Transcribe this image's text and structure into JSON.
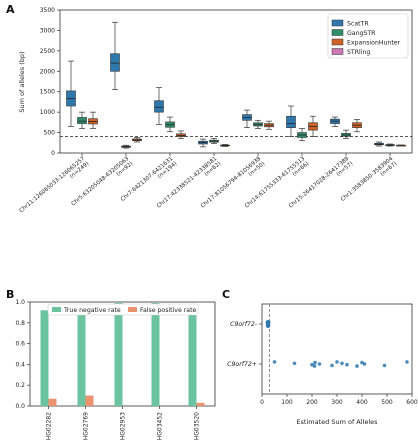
{
  "colors": {
    "ScatTR": "#2f78ad",
    "GangSTR": "#2f8f6b",
    "ExpansionHunter": "#cf6226",
    "STRling": "#cc79b3",
    "tnr": "#6cc3a0",
    "fpr": "#eb9270"
  },
  "panels": {
    "a": "A",
    "b": "B",
    "c": "C"
  },
  "chart_data": [
    {
      "type": "box",
      "panel": "A",
      "ylabel": "Sum of alleles (bp)",
      "ylim": [
        0,
        3500
      ],
      "yticks": [
        0,
        500,
        1000,
        1500,
        2000,
        2500,
        3000,
        3500
      ],
      "reference_line": 400,
      "legend_position": "top-right",
      "series_names": [
        "ScatTR",
        "GangSTR",
        "ExpansionHunter",
        "STRling"
      ],
      "categories": [
        {
          "label": "Chr11:126065033-126065257",
          "n": "(n=249)",
          "boxes": [
            {
              "series": "ScatTR",
              "whislo": 650,
              "q1": 1150,
              "med": 1330,
              "q3": 1520,
              "whishi": 2250
            },
            {
              "series": "GangSTR",
              "whislo": 600,
              "q1": 720,
              "med": 780,
              "q3": 870,
              "whishi": 1000
            },
            {
              "series": "ExpansionHunter",
              "whislo": 600,
              "q1": 710,
              "med": 770,
              "q3": 840,
              "whishi": 1000
            }
          ]
        },
        {
          "label": "Chr5:63205048-63205063",
          "n": "(n=92)",
          "boxes": [
            {
              "series": "ScatTR",
              "whislo": 1550,
              "q1": 2000,
              "med": 2200,
              "q3": 2430,
              "whishi": 3200
            },
            {
              "series": "GangSTR",
              "whislo": 120,
              "q1": 140,
              "med": 155,
              "q3": 170,
              "whishi": 190
            },
            {
              "series": "ExpansionHunter",
              "whislo": 270,
              "q1": 300,
              "med": 320,
              "q3": 345,
              "whishi": 380
            }
          ]
        },
        {
          "label": "Chr7:6421307-6421631",
          "n": "(n=194)",
          "boxes": [
            {
              "series": "ScatTR",
              "whislo": 700,
              "q1": 1000,
              "med": 1120,
              "q3": 1280,
              "whishi": 1600
            },
            {
              "series": "GangSTR",
              "whislo": 520,
              "q1": 630,
              "med": 690,
              "q3": 760,
              "whishi": 880
            },
            {
              "series": "ExpansionHunter",
              "whislo": 350,
              "q1": 400,
              "med": 430,
              "q3": 470,
              "whishi": 540
            }
          ]
        },
        {
          "label": "Chr17:42338521-42338581",
          "n": "(n=62)",
          "boxes": [
            {
              "series": "ScatTR",
              "whislo": 150,
              "q1": 220,
              "med": 255,
              "q3": 290,
              "whishi": 340
            },
            {
              "series": "GangSTR",
              "whislo": 230,
              "q1": 265,
              "med": 290,
              "q3": 315,
              "whishi": 360
            },
            {
              "series": "ExpansionHunter",
              "whislo": 160,
              "q1": 175,
              "med": 185,
              "q3": 195,
              "whishi": 210
            }
          ]
        },
        {
          "label": "Chr17:81056794-81056938",
          "n": "(n=50)",
          "boxes": [
            {
              "series": "ScatTR",
              "whislo": 620,
              "q1": 800,
              "med": 870,
              "q3": 940,
              "whishi": 1050
            },
            {
              "series": "GangSTR",
              "whislo": 600,
              "q1": 660,
              "med": 700,
              "q3": 740,
              "whishi": 800
            },
            {
              "series": "ExpansionHunter",
              "whislo": 580,
              "q1": 640,
              "med": 680,
              "q3": 720,
              "whishi": 780
            }
          ]
        },
        {
          "label": "Chr14:61755333-61755513",
          "n": "(n=66)",
          "boxes": [
            {
              "series": "ScatTR",
              "whislo": 400,
              "q1": 620,
              "med": 720,
              "q3": 900,
              "whishi": 1150
            },
            {
              "series": "GangSTR",
              "whislo": 300,
              "q1": 380,
              "med": 440,
              "q3": 500,
              "whishi": 600
            },
            {
              "series": "ExpansionHunter",
              "whislo": 400,
              "q1": 560,
              "med": 650,
              "q3": 740,
              "whishi": 900
            }
          ]
        },
        {
          "label": "Chr15:26417028-26417389",
          "n": "(n=57)",
          "boxes": [
            {
              "series": "ScatTR",
              "whislo": 650,
              "q1": 720,
              "med": 780,
              "q3": 830,
              "whishi": 880
            },
            {
              "series": "GangSTR",
              "whislo": 350,
              "q1": 410,
              "med": 440,
              "q3": 480,
              "whishi": 560
            },
            {
              "series": "ExpansionHunter",
              "whislo": 520,
              "q1": 620,
              "med": 680,
              "q3": 740,
              "whishi": 820
            }
          ]
        },
        {
          "label": "Chr1:3583850-3583904",
          "n": "(n=67)",
          "boxes": [
            {
              "series": "ScatTR",
              "whislo": 170,
              "q1": 200,
              "med": 215,
              "q3": 240,
              "whishi": 270
            },
            {
              "series": "GangSTR",
              "whislo": 170,
              "q1": 185,
              "med": 195,
              "q3": 205,
              "whishi": 220
            },
            {
              "series": "ExpansionHunter",
              "whislo": 185,
              "q1": 188,
              "med": 190,
              "q3": 192,
              "whishi": 195
            }
          ]
        }
      ]
    },
    {
      "type": "bar",
      "panel": "B",
      "ylim": [
        0,
        1.0
      ],
      "yticks": [
        0.0,
        0.2,
        0.4,
        0.6,
        0.8,
        1.0
      ],
      "legend_position": "top",
      "categories": [
        "HG02282",
        "HG02769",
        "HG02953",
        "HG03452",
        "HG03520"
      ],
      "series": [
        {
          "name": "True negative rate",
          "values": [
            0.92,
            0.89,
            0.99,
            0.99,
            0.96
          ]
        },
        {
          "name": "False positive rate",
          "values": [
            0.07,
            0.1,
            0.0,
            0.0,
            0.03
          ]
        }
      ]
    },
    {
      "type": "scatter",
      "panel": "C",
      "xlabel": "Estimated Sum of Alleles",
      "xlim": [
        0,
        600
      ],
      "xticks": [
        0,
        100,
        200,
        300,
        400,
        500,
        600
      ],
      "reference_line": 30,
      "categories": [
        "C9orf72-",
        "C9orf72+"
      ],
      "groups": [
        {
          "category": "C9orf72-",
          "x": [
            22,
            22,
            23,
            23,
            23,
            24,
            24,
            24,
            24,
            25,
            25,
            25,
            26,
            26,
            27
          ]
        },
        {
          "category": "C9orf72+",
          "x": [
            50,
            130,
            200,
            210,
            212,
            230,
            280,
            300,
            320,
            340,
            380,
            400,
            410,
            490,
            580
          ]
        }
      ]
    }
  ]
}
